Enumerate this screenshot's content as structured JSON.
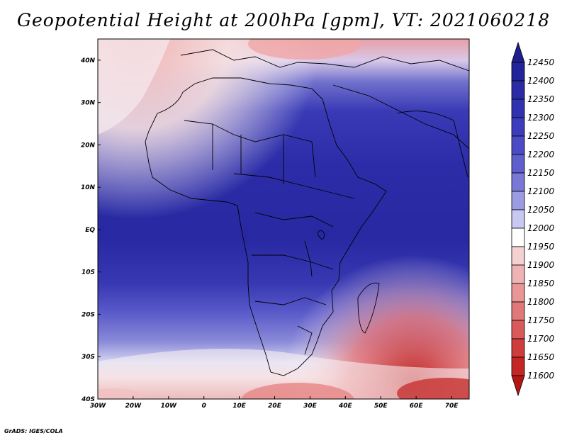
{
  "title": "Geopotential Height at 200hPa [gpm], VT: 2021060218",
  "footer": "GrADS: IGES/COLA",
  "map": {
    "region": "Africa",
    "lat_labels": [
      "40N",
      "30N",
      "20N",
      "10N",
      "EQ",
      "10S",
      "20S",
      "30S",
      "40S"
    ],
    "lon_labels": [
      "30W",
      "20W",
      "10W",
      "0",
      "10E",
      "20E",
      "30E",
      "40E",
      "50E",
      "60E",
      "70E"
    ],
    "lat_range": [
      -40,
      45
    ],
    "lon_range": [
      -30,
      75
    ]
  },
  "colorbar": {
    "levels": [
      "12450",
      "12400",
      "12350",
      "12300",
      "12250",
      "12200",
      "12150",
      "12100",
      "12050",
      "12000",
      "11950",
      "11900",
      "11850",
      "11800",
      "11750",
      "11700",
      "11650",
      "11600"
    ],
    "colors": [
      "#1e1e8c",
      "#23239a",
      "#2b2ba6",
      "#3232b0",
      "#3c3cbc",
      "#4b4bc4",
      "#5e5ecc",
      "#7878d6",
      "#9c9ce2",
      "#c8c8f0",
      "#ffffff",
      "#f5d2d2",
      "#efb3b3",
      "#e89696",
      "#e07878",
      "#d85a5a",
      "#cf3c3c",
      "#c42626",
      "#b51414"
    ]
  }
}
